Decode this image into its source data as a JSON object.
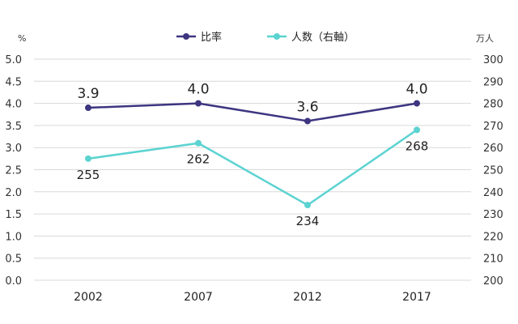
{
  "chart_data": {
    "type": "line",
    "categories": [
      "2002",
      "2007",
      "2012",
      "2017"
    ],
    "left_axis": {
      "unit_label": "%",
      "ylim": [
        0,
        5
      ],
      "ticks": [
        "0.0",
        "0.5",
        "1.0",
        "1.5",
        "2.0",
        "2.5",
        "3.0",
        "3.5",
        "4.0",
        "4.5",
        "5.0"
      ]
    },
    "right_axis": {
      "unit_label": "万人",
      "ylim": [
        200,
        300
      ],
      "ticks": [
        "200",
        "210",
        "220",
        "230",
        "240",
        "250",
        "260",
        "270",
        "280",
        "290",
        "300"
      ]
    },
    "series": [
      {
        "name": "比率",
        "axis": "left",
        "color": "#3d3580",
        "values": [
          3.9,
          4.0,
          3.6,
          4.0
        ],
        "labels": [
          "3.9",
          "4.0",
          "3.6",
          "4.0"
        ],
        "label_position": "above"
      },
      {
        "name": "人数（右軸）",
        "axis": "right",
        "color": "#5bd3d1",
        "values": [
          255,
          262,
          234,
          268
        ],
        "labels": [
          "255",
          "262",
          "234",
          "268"
        ],
        "label_position": "below"
      }
    ],
    "legend_position": "top",
    "grid": true
  }
}
